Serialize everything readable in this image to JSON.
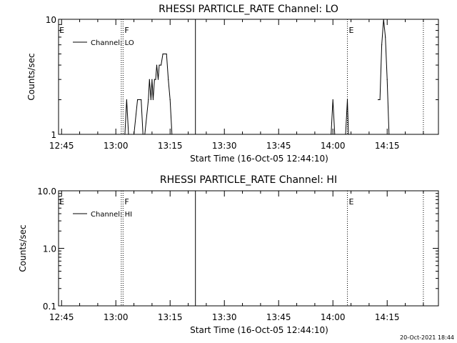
{
  "chart_data": [
    {
      "type": "line",
      "title": "RHESSI PARTICLE_RATE Channel: LO",
      "xlabel": "Start Time (16-Oct-05 12:44:10)",
      "ylabel": "Counts/sec",
      "yscale": "log",
      "ylim": [
        1,
        10
      ],
      "ytick_labels": [
        "1",
        "10"
      ],
      "xtick_labels": [
        "12:45",
        "13:00",
        "13:15",
        "13:30",
        "13:45",
        "14:00",
        "14:15"
      ],
      "legend": {
        "label": "Channel: LO",
        "placement": "top-left"
      },
      "markers": [
        {
          "label": "E",
          "time": "12:44"
        },
        {
          "label": "F",
          "time": "13:02"
        },
        {
          "label": "E",
          "time": "14:04"
        }
      ],
      "series": [
        {
          "name": "Channel: LO",
          "color": "#000000",
          "segments": [
            [
              [
                "13:02.5",
                1
              ],
              [
                "13:03",
                2
              ],
              [
                "13:03.5",
                1
              ]
            ],
            [
              [
                "13:05",
                1
              ],
              [
                "13:06",
                2
              ],
              [
                "13:07",
                2
              ],
              [
                "13:07.5",
                1
              ]
            ],
            [
              [
                "13:08",
                1
              ],
              [
                "13:09",
                2
              ],
              [
                "13:09.3",
                3
              ],
              [
                "13:09.7",
                2
              ],
              [
                "13:10",
                3
              ],
              [
                "13:10.3",
                2
              ],
              [
                "13:10.7",
                3
              ],
              [
                "13:11",
                3
              ],
              [
                "13:11.3",
                4
              ],
              [
                "13:11.7",
                3
              ],
              [
                "13:12",
                4
              ],
              [
                "13:12.5",
                4
              ],
              [
                "13:13",
                5
              ],
              [
                "13:14",
                5
              ],
              [
                "13:14.5",
                3
              ],
              [
                "13:15",
                2
              ],
              [
                "13:15.5",
                1
              ]
            ],
            [
              [
                "13:59.5",
                1
              ],
              [
                "14:00",
                2
              ],
              [
                "14:00.5",
                1
              ]
            ],
            [
              [
                "14:03.5",
                1
              ],
              [
                "14:04",
                2
              ],
              [
                "14:04.3",
                1
              ]
            ],
            [
              [
                "14:12.5",
                2
              ],
              [
                "14:13",
                2
              ],
              [
                "14:13.5",
                6
              ],
              [
                "14:14",
                10
              ],
              [
                "14:14.5",
                7
              ],
              [
                "14:15",
                3
              ],
              [
                "14:15.5",
                1
              ]
            ]
          ]
        }
      ]
    },
    {
      "type": "line",
      "title": "RHESSI PARTICLE_RATE Channel: HI",
      "xlabel": "Start Time (16-Oct-05 12:44:10)",
      "ylabel": "Counts/sec",
      "yscale": "log",
      "ylim": [
        0.1,
        10
      ],
      "ytick_labels": [
        "0.1",
        "1.0",
        "10.0"
      ],
      "xtick_labels": [
        "12:45",
        "13:00",
        "13:15",
        "13:30",
        "13:45",
        "14:00",
        "14:15"
      ],
      "legend": {
        "label": "Channel: HI",
        "placement": "top-left"
      },
      "markers": [
        {
          "label": "E",
          "time": "12:44"
        },
        {
          "label": "F",
          "time": "13:02"
        },
        {
          "label": "E",
          "time": "14:04"
        }
      ],
      "series": [
        {
          "name": "Channel: HI",
          "color": "#000000",
          "segments": []
        }
      ]
    }
  ],
  "footer": {
    "timestamp": "20-Oct-2021 18:44"
  }
}
